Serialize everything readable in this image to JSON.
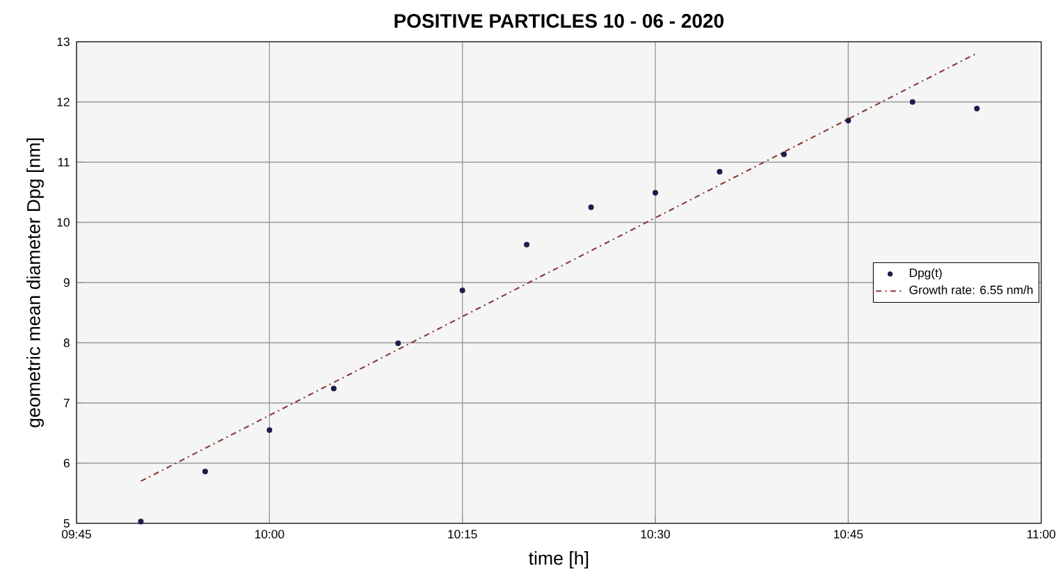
{
  "chart_data": {
    "type": "scatter",
    "title": "POSITIVE PARTICLES 10 - 06 - 2020",
    "xlabel": "time [h]",
    "ylabel": "geometric mean diameter Dpg [nm]",
    "xlim": [
      9.75,
      11
    ],
    "ylim": [
      5,
      13
    ],
    "xticks": [
      {
        "value": 9.75,
        "label": "09:45"
      },
      {
        "value": 10,
        "label": "10:00"
      },
      {
        "value": 10.25,
        "label": "10:15"
      },
      {
        "value": 10.5,
        "label": "10:30"
      },
      {
        "value": 10.75,
        "label": "10:45"
      },
      {
        "value": 11,
        "label": "11:00"
      }
    ],
    "yticks": [
      5,
      6,
      7,
      8,
      9,
      10,
      11,
      12,
      13
    ],
    "grid": true,
    "legend": "right",
    "series": [
      {
        "name": "Dpg(t)",
        "marker": "circle",
        "color": "#1c1c4a",
        "x": [
          9.8333,
          9.9167,
          10,
          10.0833,
          10.1667,
          10.25,
          10.3333,
          10.4167,
          10.5,
          10.5833,
          10.6667,
          10.75,
          10.8333,
          10.9167
        ],
        "values": [
          5.03,
          5.86,
          6.55,
          7.24,
          7.99,
          8.87,
          9.63,
          10.25,
          10.49,
          10.84,
          11.13,
          11.69,
          12.0,
          11.89
        ]
      },
      {
        "name": "Growth rate: 6.55 nm/h",
        "type": "line",
        "marker": "none",
        "line_style": "dashdot",
        "color": "#8b3a3a",
        "x": [
          9.8333,
          10.9167
        ],
        "values": [
          5.7,
          12.81
        ]
      }
    ]
  }
}
